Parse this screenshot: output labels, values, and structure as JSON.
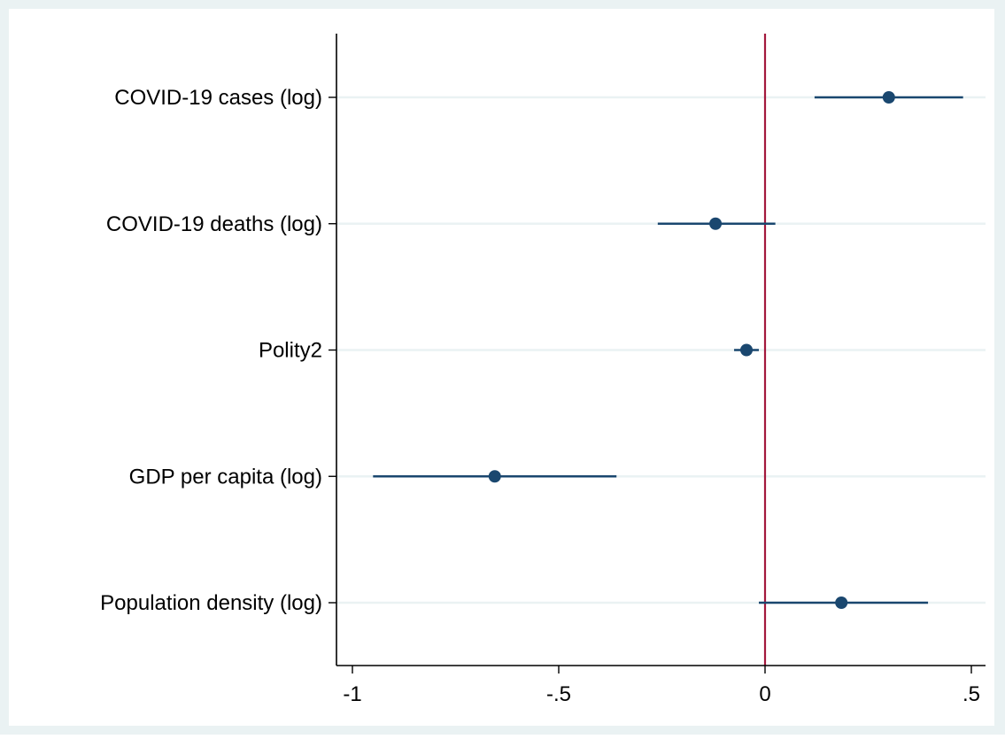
{
  "chart_data": {
    "type": "scatter",
    "subtype": "coefficient-plot",
    "title": "",
    "xlabel": "",
    "ylabel": "",
    "xlim": [
      -1.04,
      0.53
    ],
    "xticks": [
      {
        "value": -1,
        "label": "-1"
      },
      {
        "value": -0.5,
        "label": "-.5"
      },
      {
        "value": 0,
        "label": "0"
      },
      {
        "value": 0.5,
        "label": ".5"
      }
    ],
    "reference_line": {
      "x": 0,
      "color": "#a3183c"
    },
    "grid": "horizontal",
    "categories": [
      "COVID-19 cases (log)",
      "COVID-19 deaths (log)",
      "Polity2",
      "GDP per capita (log)",
      "Population density (log)"
    ],
    "series": [
      {
        "estimates": [
          0.3,
          -0.12,
          -0.045,
          -0.655,
          0.185
        ],
        "ci_low": [
          0.12,
          -0.26,
          -0.075,
          -0.95,
          -0.015
        ],
        "ci_high": [
          0.48,
          0.025,
          -0.015,
          -0.36,
          0.395
        ],
        "color": "#1a476f"
      }
    ],
    "colors": {
      "outer_background": "#eaf2f3",
      "plot_background": "#ffffff",
      "gridline": "#eaf2f3",
      "axis": "#000000"
    }
  }
}
